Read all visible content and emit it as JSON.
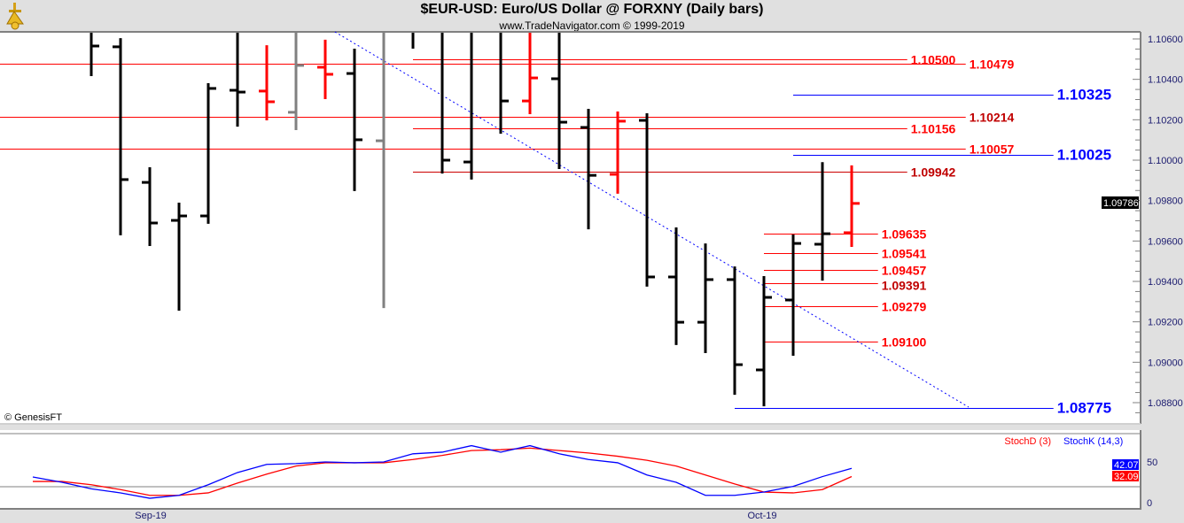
{
  "header": {
    "title": "$EUR-USD:  Euro/US Dollar @ FORXNY  (Daily bars)",
    "subtitle": "www.TradeNavigator.com © 1999-2019",
    "logo_icon": "sextant-logo-icon"
  },
  "copyright": "© GenesisFT",
  "chart_data": [
    {
      "type": "ohlc-bar",
      "y_axis": {
        "range": [
          1.0872,
          1.1063
        ],
        "ticks": [
          "1.10600",
          "1.10400",
          "1.10200",
          "1.10000",
          "1.09800",
          "1.09600",
          "1.09400",
          "1.09200",
          "1.09000",
          "1.08800"
        ],
        "position": "right"
      },
      "x_axis": {
        "tick_labels": [
          {
            "label": "Sep-19",
            "index": 4
          },
          {
            "label": "Oct-19",
            "index": 25
          }
        ]
      },
      "last_price": "1.09786",
      "colors": {
        "up": "#000000",
        "red": "#ff0000",
        "gray": "#808080"
      },
      "bars": [
        null,
        null,
        {
          "o": null,
          "h": 1.1064,
          "l": 1.10416,
          "c": 1.10565,
          "color": "black"
        },
        {
          "o": 1.10561,
          "h": 1.10604,
          "l": 1.09628,
          "c": 1.09904,
          "color": "black"
        },
        {
          "o": 1.0989,
          "h": 1.09965,
          "l": 1.09575,
          "c": 1.09689,
          "color": "black"
        },
        {
          "o": 1.09702,
          "h": 1.0979,
          "l": 1.09255,
          "c": 1.09724,
          "color": "black"
        },
        {
          "o": 1.09724,
          "h": 1.10381,
          "l": 1.09685,
          "c": 1.10355,
          "color": "black"
        },
        {
          "o": 1.10346,
          "h": 1.1064,
          "l": 1.10166,
          "c": 1.10337,
          "color": "black"
        },
        {
          "o": 1.10342,
          "h": 1.10569,
          "l": 1.10197,
          "c": 1.10289,
          "color": "red"
        },
        {
          "o": 1.10237,
          "h": 1.1064,
          "l": 1.10149,
          "c": 1.10469,
          "color": "gray"
        },
        {
          "o": 1.1046,
          "h": 1.10596,
          "l": 1.10302,
          "c": 1.10425,
          "color": "red"
        },
        {
          "o": 1.10429,
          "h": 1.10552,
          "l": 1.09847,
          "c": 1.10101,
          "color": "black"
        },
        {
          "o": 1.10096,
          "h": 1.1064,
          "l": 1.09268,
          "c": null,
          "color": "gray"
        },
        {
          "o": null,
          "h": 1.1064,
          "l": 1.10552,
          "c": null,
          "color": "black"
        },
        {
          "o": null,
          "h": 1.1064,
          "l": 1.09934,
          "c": 1.1,
          "color": "black"
        },
        {
          "o": 1.09991,
          "h": 1.1064,
          "l": 1.09904,
          "c": null,
          "color": "black"
        },
        {
          "o": null,
          "h": 1.1064,
          "l": 1.10131,
          "c": 1.10293,
          "color": "black"
        },
        {
          "o": 1.10293,
          "h": 1.1064,
          "l": 1.10228,
          "c": 1.10407,
          "color": "red"
        },
        {
          "o": 1.10403,
          "h": 1.1064,
          "l": 1.09956,
          "c": 1.10188,
          "color": "black"
        },
        {
          "o": 1.10162,
          "h": 1.10254,
          "l": 1.09658,
          "c": 1.09925,
          "color": "black"
        },
        {
          "o": 1.0993,
          "h": 1.10241,
          "l": 1.09834,
          "c": 1.10193,
          "color": "red"
        },
        {
          "o": 1.10197,
          "h": 1.10232,
          "l": 1.09374,
          "c": 1.09422,
          "color": "black"
        },
        {
          "o": 1.09422,
          "h": 1.09667,
          "l": 1.09085,
          "c": 1.09198,
          "color": "black"
        },
        {
          "o": 1.09198,
          "h": 1.09588,
          "l": 1.09045,
          "c": 1.09409,
          "color": "black"
        },
        {
          "o": 1.09409,
          "h": 1.09474,
          "l": 1.08839,
          "c": 1.08988,
          "color": "black"
        },
        {
          "o": 1.08962,
          "h": 1.09426,
          "l": 1.08782,
          "c": 1.09321,
          "color": "black"
        },
        {
          "o": 1.09308,
          "h": 1.09632,
          "l": 1.09032,
          "c": 1.09588,
          "color": "black"
        },
        {
          "o": 1.09584,
          "h": 1.0999,
          "l": 1.09404,
          "c": 1.09636,
          "color": "black"
        },
        {
          "o": 1.09641,
          "h": 1.09974,
          "l": 1.09571,
          "c": 1.09786,
          "color": "red"
        }
      ],
      "levels": [
        {
          "value": 1.10479,
          "label": "1.10479",
          "from": -1.2,
          "to": 31.9,
          "color": "#ff0000",
          "label_color": "#ff0000",
          "size": "md"
        },
        {
          "value": 1.10214,
          "label": "1.10214",
          "from": -1.2,
          "to": 31.9,
          "color": "#ff0000",
          "label_color": "#c00000",
          "size": "md"
        },
        {
          "value": 1.10057,
          "label": "1.10057",
          "from": -1.2,
          "to": 31.9,
          "color": "#ff0000",
          "label_color": "#ff0000",
          "size": "md"
        },
        {
          "value": 1.105,
          "label": "1.10500",
          "from": 13,
          "to": 29.9,
          "color": "#ff0000",
          "label_color": "#ff0000",
          "size": "md"
        },
        {
          "value": 1.10156,
          "label": "1.10156",
          "from": 13,
          "to": 29.9,
          "color": "#ff0000",
          "label_color": "#ff0000",
          "size": "md"
        },
        {
          "value": 1.09942,
          "label": "1.09942",
          "from": 13,
          "to": 29.9,
          "color": "#cc0000",
          "label_color": "#c00000",
          "size": "md"
        },
        {
          "value": 1.09635,
          "label": "1.09635",
          "from": 25,
          "to": 28.9,
          "color": "#ff0000",
          "label_color": "#ff0000",
          "size": "md"
        },
        {
          "value": 1.09541,
          "label": "1.09541",
          "from": 25,
          "to": 28.9,
          "color": "#ff0000",
          "label_color": "#ff0000",
          "size": "md"
        },
        {
          "value": 1.09457,
          "label": "1.09457",
          "from": 25,
          "to": 28.9,
          "color": "#ff0000",
          "label_color": "#ff0000",
          "size": "md"
        },
        {
          "value": 1.09391,
          "label": "1.09391",
          "from": 25,
          "to": 28.9,
          "color": "#ff0000",
          "label_color": "#c00000",
          "size": "md"
        },
        {
          "value": 1.09279,
          "label": "1.09279",
          "from": 25,
          "to": 28.9,
          "color": "#ff0000",
          "label_color": "#ff0000",
          "size": "md"
        },
        {
          "value": 1.091,
          "label": "1.09100",
          "from": 25,
          "to": 28.9,
          "color": "#ff0000",
          "label_color": "#ff0000",
          "size": "md"
        },
        {
          "value": 1.10325,
          "label": "1.10325",
          "from": 26,
          "to": 34.9,
          "color": "#0000ff",
          "label_color": "#0000ff",
          "size": "lg"
        },
        {
          "value": 1.10025,
          "label": "1.10025",
          "from": 26,
          "to": 34.9,
          "color": "#0000ff",
          "label_color": "#0000ff",
          "size": "lg"
        },
        {
          "value": 1.08775,
          "label": "1.08775",
          "from": 24,
          "to": 34.9,
          "color": "#0000ff",
          "label_color": "#0000ff",
          "size": "lg"
        }
      ],
      "trendline": {
        "from": {
          "index": 10.33,
          "value": 1.10635
        },
        "to": {
          "index": 32.0,
          "value": 1.08778
        },
        "color": "#0000ff",
        "style": "dotted"
      }
    },
    {
      "type": "line",
      "y_axis": {
        "range": [
          0,
          100
        ],
        "ticks": [
          "50",
          "0"
        ],
        "reference_lines": [
          80,
          20
        ]
      },
      "legend": {
        "position": "top-right"
      },
      "series": [
        {
          "name": "StochD (3)",
          "color": "#ff0000",
          "last": "32.09",
          "values": [
            26,
            26,
            22,
            16,
            9,
            9,
            12,
            24,
            35,
            45,
            49,
            49,
            49,
            53,
            58,
            64,
            65,
            67,
            64,
            61,
            57,
            52,
            45,
            34,
            23,
            13,
            12,
            16,
            32.09
          ]
        },
        {
          "name": "StochK (14,3)",
          "color": "#0000ff",
          "last": "42.07",
          "values": [
            31.5,
            25,
            17,
            12,
            5.4,
            9,
            22,
            37,
            47,
            48,
            50,
            49,
            50,
            60,
            62,
            70,
            62,
            70,
            60,
            53,
            49,
            34,
            25,
            9,
            9,
            13,
            20,
            32,
            42.07
          ]
        }
      ]
    }
  ]
}
